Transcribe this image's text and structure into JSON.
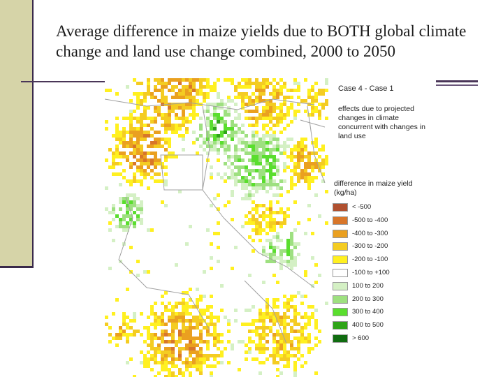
{
  "slide": {
    "title": "Average difference in maize yields due to BOTH global climate change and land use change combined, 2000 to 2050"
  },
  "legend": {
    "case": "Case 4 - Case 1",
    "description": "effects due to projected changes in climate concurrent with changes in land use",
    "title": "difference in maize yield (kg/ha)",
    "items": [
      {
        "label": "< -500",
        "color": "#b05030"
      },
      {
        "label": "-500 to -400",
        "color": "#d8762a"
      },
      {
        "label": "-400 to -300",
        "color": "#eaa020"
      },
      {
        "label": "-300 to -200",
        "color": "#f4cc22"
      },
      {
        "label": "-200 to -100",
        "color": "#fff020"
      },
      {
        "label": "-100 to +100",
        "color": "#ffffff"
      },
      {
        "label": "100 to 200",
        "color": "#d4f0c4"
      },
      {
        "label": "200 to 300",
        "color": "#9ee080"
      },
      {
        "label": "300 to 400",
        "color": "#5ade2e"
      },
      {
        "label": "400 to 500",
        "color": "#2fa418"
      },
      {
        "label": "> 600",
        "color": "#106c10"
      }
    ]
  }
}
